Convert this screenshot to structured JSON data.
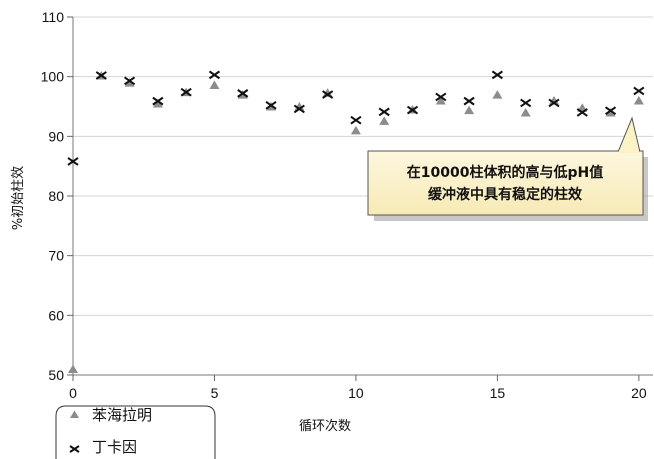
{
  "chart_data": {
    "type": "scatter",
    "xlabel": "循环次数",
    "ylabel": "%初始柱效",
    "xlim": [
      0,
      20.5
    ],
    "ylim": [
      50,
      110
    ],
    "xticks": [
      0,
      5,
      10,
      15,
      20
    ],
    "yticks": [
      50,
      60,
      70,
      80,
      90,
      100,
      110
    ],
    "grid": "horizontal",
    "legend_position": "bottom-left",
    "series": [
      {
        "name": "苯海拉明",
        "marker": "triangle",
        "color": "#8c8c8c",
        "x": [
          0,
          1,
          2,
          3,
          4,
          5,
          6,
          7,
          8,
          9,
          10,
          11,
          12,
          13,
          14,
          15,
          16,
          17,
          18,
          19,
          20
        ],
        "y": [
          51,
          100.2,
          99,
          95.5,
          97.4,
          98.6,
          97,
          95,
          95,
          97.3,
          91,
          92.6,
          94.5,
          96,
          94.4,
          97,
          94,
          96,
          94.8,
          94,
          96
        ]
      },
      {
        "name": "丁卡因",
        "marker": "x",
        "color": "#111111",
        "x": [
          0,
          1,
          2,
          3,
          4,
          5,
          6,
          7,
          8,
          9,
          10,
          11,
          12,
          13,
          14,
          15,
          16,
          17,
          18,
          19,
          20
        ],
        "y": [
          85.8,
          100.2,
          99.3,
          95.9,
          97.4,
          100.3,
          97.2,
          95.2,
          94.6,
          97,
          92.7,
          94.1,
          94.4,
          96.6,
          95.9,
          100.3,
          95.6,
          95.6,
          94,
          94.3,
          97.6
        ]
      }
    ],
    "annotation": {
      "lines": [
        "在10000柱体积的高与低pH值",
        "缓冲液中具有稳定的柱效"
      ],
      "points_to": [
        20,
        96
      ]
    }
  }
}
